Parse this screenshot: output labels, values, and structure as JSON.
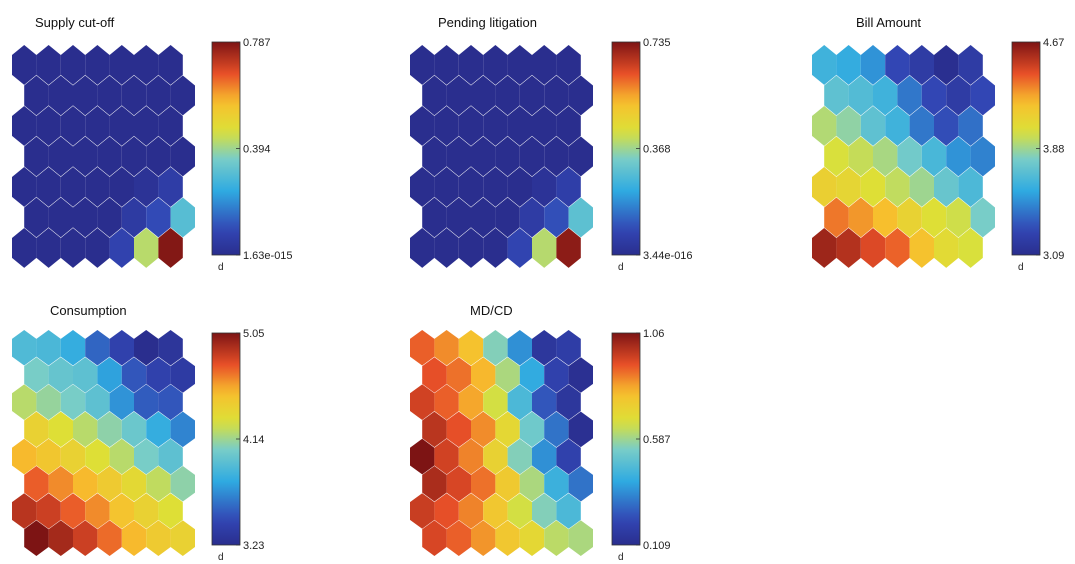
{
  "chart_data": [
    {
      "type": "heatmap",
      "title": "Supply cut-off",
      "colorbar": {
        "min": 0,
        "max": 0.787,
        "ticks": [
          "0.787",
          "0.394",
          "1.63e-015"
        ],
        "unit": "d"
      },
      "grid": {
        "rows": 7,
        "cols": 7
      },
      "values": [
        [
          0.0,
          0.0,
          0.0,
          0.0,
          0.0,
          0.0,
          0.0
        ],
        [
          0.0,
          0.0,
          0.0,
          0.0,
          0.0,
          0.0,
          0.0
        ],
        [
          0.0,
          0.0,
          0.0,
          0.0,
          0.0,
          0.0,
          0.0
        ],
        [
          0.0,
          0.0,
          0.0,
          0.0,
          0.0,
          0.0,
          0.0
        ],
        [
          0.0,
          0.0,
          0.0,
          0.0,
          0.0,
          0.02,
          0.06
        ],
        [
          0.0,
          0.0,
          0.0,
          0.0,
          0.05,
          0.1,
          0.3
        ],
        [
          0.0,
          0.0,
          0.0,
          0.0,
          0.08,
          0.42,
          0.78
        ]
      ]
    },
    {
      "type": "heatmap",
      "title": "Pending litigation",
      "colorbar": {
        "min": 0,
        "max": 0.735,
        "ticks": [
          "0.735",
          "0.368",
          "3.44e-016"
        ],
        "unit": "d"
      },
      "grid": {
        "rows": 7,
        "cols": 7
      },
      "values": [
        [
          0.0,
          0.0,
          0.0,
          0.0,
          0.0,
          0.0,
          0.0
        ],
        [
          0.0,
          0.0,
          0.0,
          0.0,
          0.0,
          0.0,
          0.0
        ],
        [
          0.0,
          0.0,
          0.0,
          0.0,
          0.0,
          0.0,
          0.0
        ],
        [
          0.0,
          0.0,
          0.0,
          0.0,
          0.0,
          0.0,
          0.0
        ],
        [
          0.0,
          0.0,
          0.0,
          0.0,
          0.0,
          0.02,
          0.06
        ],
        [
          0.0,
          0.0,
          0.0,
          0.0,
          0.05,
          0.1,
          0.29
        ],
        [
          0.0,
          0.0,
          0.0,
          0.0,
          0.08,
          0.39,
          0.72
        ]
      ]
    },
    {
      "type": "heatmap",
      "title": "Bill Amount",
      "colorbar": {
        "min": 3.09,
        "max": 4.67,
        "ticks": [
          "4.67",
          "3.88",
          "3.09"
        ],
        "unit": "d"
      },
      "grid": {
        "rows": 7,
        "cols": 7
      },
      "values": [
        [
          3.62,
          3.58,
          3.5,
          3.28,
          3.2,
          3.1,
          3.2
        ],
        [
          3.72,
          3.68,
          3.62,
          3.42,
          3.28,
          3.2,
          3.28
        ],
        [
          3.92,
          3.85,
          3.72,
          3.62,
          3.42,
          3.3,
          3.4
        ],
        [
          4.0,
          3.96,
          3.9,
          3.78,
          3.65,
          3.5,
          3.45
        ],
        [
          4.12,
          4.08,
          4.02,
          3.95,
          3.88,
          3.75,
          3.66
        ],
        [
          4.36,
          4.3,
          4.22,
          4.1,
          4.02,
          3.98,
          3.8
        ],
        [
          4.6,
          4.55,
          4.46,
          4.4,
          4.2,
          4.05,
          4.0
        ]
      ]
    },
    {
      "type": "heatmap",
      "title": "Consumption",
      "colorbar": {
        "min": 3.23,
        "max": 5.05,
        "ticks": [
          "5.05",
          "4.14",
          "3.23"
        ],
        "unit": "d"
      },
      "grid": {
        "rows": 8,
        "cols": 7
      },
      "values": [
        [
          3.9,
          3.88,
          3.8,
          3.55,
          3.4,
          3.23,
          3.3
        ],
        [
          4.05,
          3.98,
          3.95,
          3.75,
          3.5,
          3.4,
          3.35
        ],
        [
          4.2,
          4.12,
          4.05,
          3.95,
          3.7,
          3.52,
          3.5
        ],
        [
          4.4,
          4.3,
          4.2,
          4.1,
          4.0,
          3.8,
          3.65
        ],
        [
          4.55,
          4.48,
          4.4,
          4.3,
          4.2,
          4.05,
          3.95
        ],
        [
          4.75,
          4.65,
          4.55,
          4.45,
          4.35,
          4.22,
          4.1
        ],
        [
          4.9,
          4.85,
          4.75,
          4.65,
          4.5,
          4.4,
          4.3
        ],
        [
          5.05,
          4.95,
          4.85,
          4.72,
          4.55,
          4.45,
          4.4
        ]
      ]
    },
    {
      "type": "heatmap",
      "title": "MD/CD",
      "colorbar": {
        "min": 0.109,
        "max": 1.06,
        "ticks": [
          "1.06",
          "0.587",
          "0.109"
        ],
        "unit": "d"
      },
      "grid": {
        "rows": 8,
        "cols": 7
      },
      "values": [
        [
          0.9,
          0.85,
          0.78,
          0.55,
          0.35,
          0.15,
          0.18
        ],
        [
          0.92,
          0.88,
          0.8,
          0.6,
          0.4,
          0.2,
          0.12
        ],
        [
          0.95,
          0.9,
          0.82,
          0.65,
          0.45,
          0.25,
          0.15
        ],
        [
          0.98,
          0.92,
          0.85,
          0.7,
          0.52,
          0.3,
          0.12
        ],
        [
          1.06,
          0.95,
          0.86,
          0.72,
          0.55,
          0.35,
          0.2
        ],
        [
          1.0,
          0.94,
          0.88,
          0.75,
          0.6,
          0.42,
          0.3
        ],
        [
          0.96,
          0.92,
          0.86,
          0.76,
          0.65,
          0.55,
          0.45
        ],
        [
          0.94,
          0.9,
          0.84,
          0.76,
          0.7,
          0.62,
          0.6
        ]
      ]
    }
  ]
}
